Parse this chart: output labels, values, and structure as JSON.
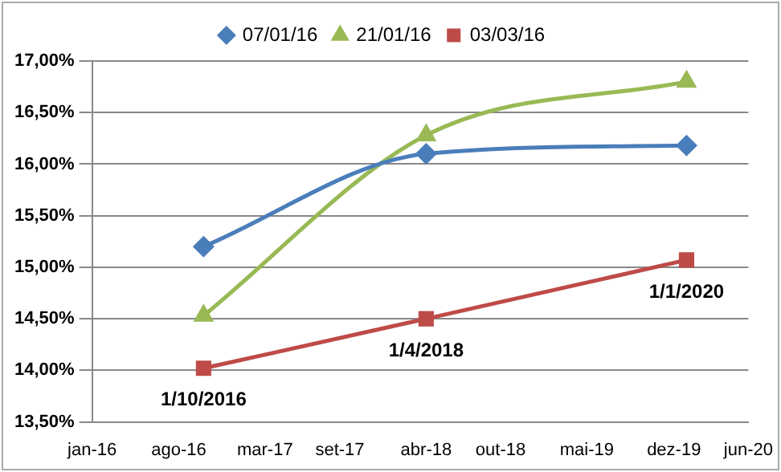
{
  "chart_data": {
    "type": "line",
    "legend": "top",
    "grid": "y",
    "line_style": "solid",
    "xlim": [
      "2016-01-01",
      "2020-06-01"
    ],
    "xticks": [
      {
        "value": "2016-01-01",
        "label": "jan-16"
      },
      {
        "value": "2016-08-01",
        "label": "ago-16"
      },
      {
        "value": "2017-03-01",
        "label": "mar-17"
      },
      {
        "value": "2017-09-01",
        "label": "set-17"
      },
      {
        "value": "2018-04-01",
        "label": "abr-18"
      },
      {
        "value": "2018-10-01",
        "label": "out-18"
      },
      {
        "value": "2019-05-01",
        "label": "mai-19"
      },
      {
        "value": "2019-12-01",
        "label": "dez-19"
      },
      {
        "value": "2020-06-01",
        "label": "jun-20"
      }
    ],
    "ylim": [
      13.5,
      17
    ],
    "yticks": [
      {
        "value": 13.5,
        "label": "13,50%"
      },
      {
        "value": 14,
        "label": "14,00%"
      },
      {
        "value": 14.5,
        "label": "14,50%"
      },
      {
        "value": 15,
        "label": "15,00%"
      },
      {
        "value": 15.5,
        "label": "15,50%"
      },
      {
        "value": 16,
        "label": "16,00%"
      },
      {
        "value": 16.5,
        "label": "16,50%"
      },
      {
        "value": 17,
        "label": "17,00%"
      }
    ],
    "x": [
      "2016-10-01",
      "2018-04-01",
      "2020-01-01"
    ],
    "series": [
      {
        "name": "07/01/16",
        "color": "#4a7ebb",
        "marker": "diamond",
        "values": [
          15.2,
          16.1,
          16.18
        ]
      },
      {
        "name": "21/01/16",
        "color": "#98b954",
        "marker": "triangle",
        "values": [
          14.53,
          16.28,
          16.8
        ]
      },
      {
        "name": "03/03/16",
        "color": "#be4b48",
        "marker": "square",
        "values": [
          14.02,
          14.5,
          15.07
        ]
      }
    ],
    "annotations": [
      {
        "text": "1/10/2016",
        "x": "2016-10-01",
        "y": 14.02
      },
      {
        "text": "1/4/2018",
        "x": "2018-04-01",
        "y": 14.5
      },
      {
        "text": "1/1/2020",
        "x": "2020-01-01",
        "y": 15.07
      }
    ]
  }
}
